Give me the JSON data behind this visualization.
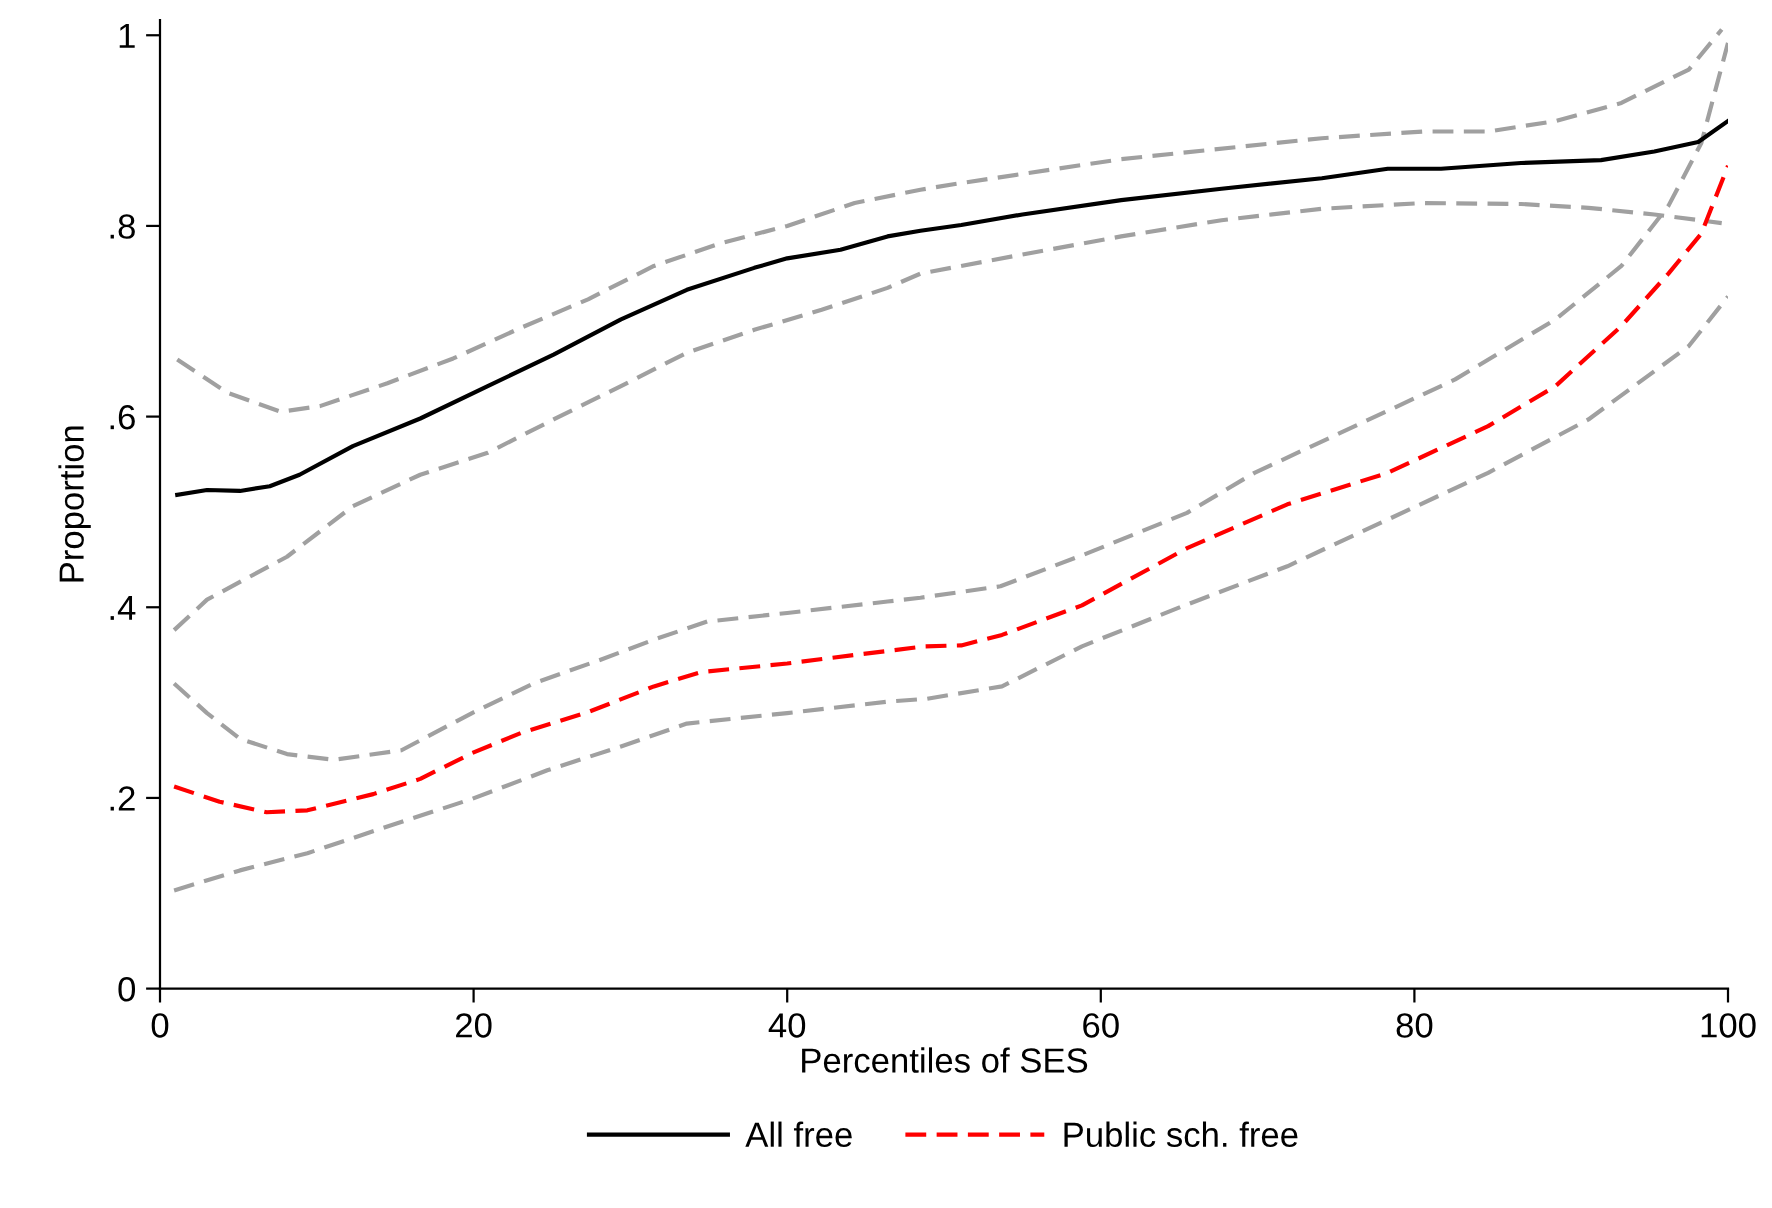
{
  "chart_data": {
    "type": "line",
    "xlabel": "Percentiles of SES",
    "ylabel": "Proportion",
    "xlim": [
      0,
      100
    ],
    "xticks": [
      0,
      20,
      40,
      60,
      80,
      100
    ],
    "ylim": [
      0,
      1.016
    ],
    "yticks": [
      0,
      {
        "value": 0.2,
        "label": ".2"
      },
      {
        "value": 0.4,
        "label": ".4"
      },
      {
        "value": 0.6,
        "label": ".6"
      },
      {
        "value": 0.8,
        "label": ".8"
      },
      1
    ],
    "grid": false,
    "legend": "bottom",
    "marker": "none",
    "series": [
      {
        "color": "#a0a0a0",
        "line_style": "dashed",
        "x": [
          1.1,
          4.3,
          7.7,
          10.2,
          14.5,
          18.7,
          23,
          27.3,
          31.5,
          35.8,
          40,
          44.3,
          48.5,
          51.1,
          61.3,
          74.1,
          80.5,
          84.7,
          89,
          93.2,
          97.5,
          99.6
        ],
        "values": [
          0.66,
          0.625,
          0.605,
          0.611,
          0.635,
          0.661,
          0.693,
          0.723,
          0.758,
          0.782,
          0.8,
          0.824,
          0.838,
          0.845,
          0.87,
          0.892,
          0.899,
          0.899,
          0.91,
          0.929,
          0.964,
          1.006
        ]
      },
      {
        "color": "#a0a0a0",
        "line_style": "dashed",
        "x": [
          0.9,
          3,
          8.1,
          12.3,
          16.6,
          20.9,
          25.1,
          29.4,
          33.6,
          37.9,
          42.2,
          46.4,
          48.5,
          55,
          61.3,
          67.7,
          74.1,
          80.5,
          86.8,
          91.1,
          95.3,
          99.6
        ],
        "values": [
          0.376,
          0.408,
          0.453,
          0.506,
          0.539,
          0.562,
          0.597,
          0.632,
          0.667,
          0.691,
          0.712,
          0.735,
          0.75,
          0.77,
          0.789,
          0.806,
          0.818,
          0.824,
          0.823,
          0.819,
          0.812,
          0.803
        ]
      },
      {
        "color": "#a0a0a0",
        "line_style": "dashed",
        "x": [
          0.9,
          3,
          5.1,
          8.1,
          11.1,
          15.4,
          19.9,
          23.8,
          28.1,
          31.5,
          34.9,
          40,
          46.4,
          48.5,
          53.6,
          59.2,
          65.5,
          69.8,
          76.2,
          82.6,
          89,
          93.2,
          96.2,
          98.3,
          100
        ],
        "values": [
          0.32,
          0.289,
          0.262,
          0.246,
          0.24,
          0.25,
          0.289,
          0.32,
          0.345,
          0.366,
          0.385,
          0.394,
          0.406,
          0.41,
          0.422,
          0.457,
          0.499,
          0.541,
          0.59,
          0.639,
          0.702,
          0.758,
          0.821,
          0.887,
          0.992
        ]
      },
      {
        "color": "#a0a0a0",
        "line_style": "dashed",
        "x": [
          0.9,
          5.1,
          9.4,
          14.5,
          19.9,
          24.7,
          29.4,
          33.6,
          40,
          46.4,
          48.9,
          53.7,
          58.8,
          65.2,
          71.9,
          78.3,
          84.7,
          91.1,
          97.5,
          100
        ],
        "values": [
          0.103,
          0.124,
          0.142,
          0.17,
          0.199,
          0.229,
          0.254,
          0.278,
          0.289,
          0.301,
          0.304,
          0.317,
          0.359,
          0.401,
          0.443,
          0.492,
          0.541,
          0.597,
          0.674,
          0.726
        ]
      },
      {
        "name": "All free",
        "color": "#000000",
        "line_style": "solid",
        "x": [
          1.1,
          3,
          5.1,
          7,
          8.9,
          12.3,
          16.6,
          20.9,
          25.1,
          29.4,
          33.6,
          37.9,
          40,
          43.4,
          46.4,
          48.5,
          51.1,
          55,
          61.3,
          67.7,
          74.1,
          78.3,
          81.7,
          86.8,
          91.9,
          95.3,
          98.1,
          100
        ],
        "values": [
          0.518,
          0.523,
          0.522,
          0.527,
          0.539,
          0.569,
          0.598,
          0.632,
          0.665,
          0.702,
          0.733,
          0.756,
          0.766,
          0.775,
          0.789,
          0.795,
          0.801,
          0.812,
          0.827,
          0.839,
          0.85,
          0.86,
          0.86,
          0.866,
          0.869,
          0.878,
          0.888,
          0.91
        ]
      },
      {
        "name": "Public sch. free",
        "color": "#ff0000",
        "line_style": "dashed",
        "x": [
          0.9,
          3.8,
          6.8,
          9.4,
          13.6,
          16.6,
          19.9,
          23,
          27.3,
          31.5,
          34.5,
          40,
          44.3,
          48.8,
          51.1,
          53.7,
          58.8,
          65.5,
          71.9,
          78.3,
          84.7,
          89,
          93.2,
          96.2,
          98.3,
          100
        ],
        "values": [
          0.212,
          0.196,
          0.185,
          0.187,
          0.204,
          0.22,
          0.247,
          0.268,
          0.29,
          0.317,
          0.332,
          0.341,
          0.35,
          0.359,
          0.36,
          0.371,
          0.402,
          0.462,
          0.508,
          0.541,
          0.59,
          0.632,
          0.695,
          0.75,
          0.792,
          0.863
        ]
      }
    ]
  }
}
